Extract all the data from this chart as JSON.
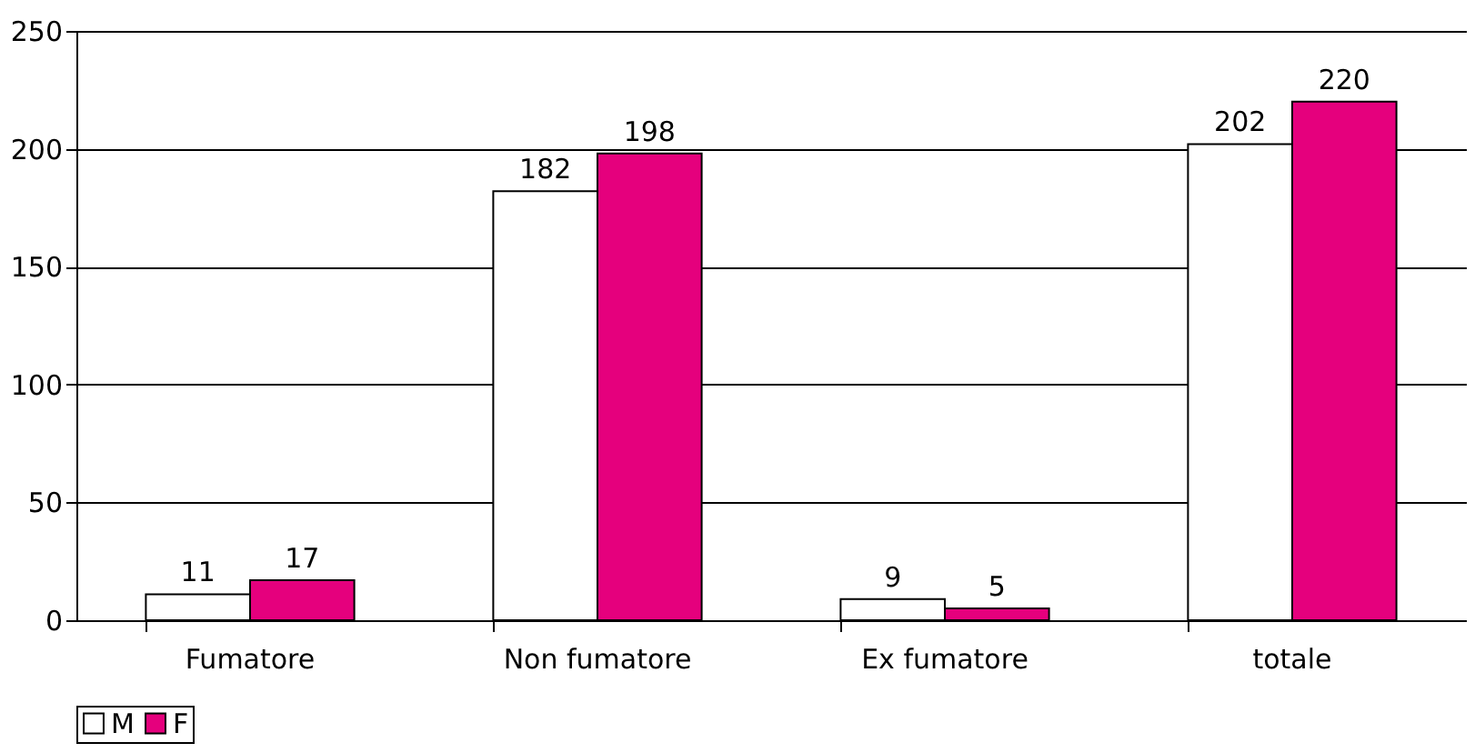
{
  "chart_data": {
    "type": "bar",
    "categories": [
      "Fumatore",
      "Non fumatore",
      "Ex fumatore",
      "totale"
    ],
    "series": [
      {
        "name": "M",
        "color": "#ffffff",
        "values": [
          11,
          182,
          9,
          202
        ]
      },
      {
        "name": "F",
        "color": "#e5007d",
        "values": [
          17,
          198,
          5,
          220
        ]
      }
    ],
    "ylim": [
      0,
      250
    ],
    "yticks": [
      0,
      50,
      100,
      150,
      200,
      250
    ],
    "grid": "y",
    "legend": "bottom",
    "data_labels": true
  }
}
